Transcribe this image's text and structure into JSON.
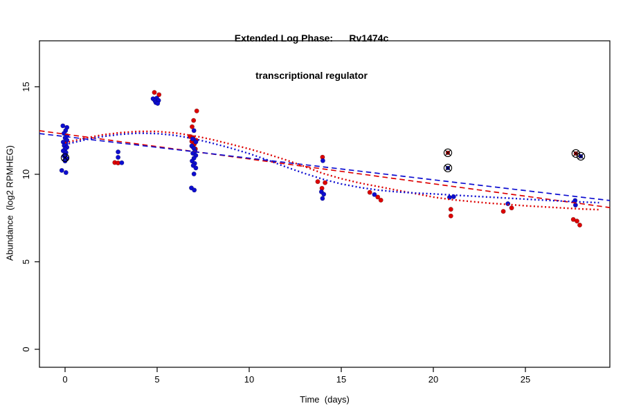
{
  "title": {
    "line1": "Extended Log Phase:      Rv1474c",
    "line2": "transcriptional regulator"
  },
  "colors": {
    "red": "#dd0000",
    "blue": "#0d0dd0",
    "axis": "#000000",
    "outlier_marker": "#000000"
  },
  "chart_data": {
    "type": "scatter",
    "title": "Extended Log Phase: Rv1474c transcriptional regulator",
    "xlabel": "Time  (days)",
    "ylabel": "Abundance  (log2 RPMHEG)",
    "xlim": [
      -1.39,
      29.59
    ],
    "ylim": [
      -1.03,
      17.63
    ],
    "x_ticks": [
      0,
      5,
      10,
      15,
      20,
      25
    ],
    "y_ticks": [
      0,
      5,
      10,
      15
    ],
    "grid": false,
    "legend": "none",
    "series": [
      {
        "name": "red-replicate-points",
        "kind": "points",
        "color": "red",
        "points": [
          [
            2.7,
            10.67
          ],
          [
            2.88,
            10.65
          ],
          [
            4.85,
            14.68
          ],
          [
            5.1,
            14.55
          ],
          [
            7.15,
            13.62
          ],
          [
            6.98,
            13.08
          ],
          [
            6.9,
            12.72
          ],
          [
            6.78,
            12.16
          ],
          [
            6.95,
            12.1
          ],
          [
            7.12,
            11.95
          ],
          [
            6.88,
            11.88
          ],
          [
            7.02,
            11.72
          ],
          [
            6.92,
            11.58
          ],
          [
            7.08,
            11.45
          ],
          [
            13.98,
            10.98
          ],
          [
            13.72,
            9.58
          ],
          [
            14.12,
            9.52
          ],
          [
            13.95,
            9.2
          ],
          [
            16.55,
            8.97
          ],
          [
            16.98,
            8.7
          ],
          [
            17.15,
            8.52
          ],
          [
            20.95,
            8.0
          ],
          [
            20.95,
            7.62
          ],
          [
            23.8,
            7.88
          ],
          [
            24.25,
            8.08
          ],
          [
            27.6,
            7.42
          ],
          [
            27.8,
            7.33
          ],
          [
            27.95,
            7.1
          ]
        ]
      },
      {
        "name": "blue-replicate-points",
        "kind": "points",
        "color": "blue",
        "points": [
          [
            -0.12,
            12.77
          ],
          [
            0.1,
            12.68
          ],
          [
            0.03,
            12.5
          ],
          [
            -0.06,
            12.34
          ],
          [
            0.1,
            12.2
          ],
          [
            0.0,
            12.08
          ],
          [
            0.1,
            11.95
          ],
          [
            -0.1,
            11.84
          ],
          [
            0.05,
            11.74
          ],
          [
            -0.05,
            11.64
          ],
          [
            0.1,
            11.54
          ],
          [
            0.0,
            11.44
          ],
          [
            -0.1,
            11.34
          ],
          [
            0.05,
            11.24
          ],
          [
            0.0,
            11.14
          ],
          [
            -0.05,
            11.04
          ],
          [
            0.1,
            10.9
          ],
          [
            0.0,
            10.76
          ],
          [
            -0.18,
            10.22
          ],
          [
            0.05,
            10.1
          ],
          [
            2.88,
            11.28
          ],
          [
            2.88,
            10.97
          ],
          [
            3.08,
            10.66
          ],
          [
            4.78,
            14.32
          ],
          [
            4.98,
            14.35
          ],
          [
            4.88,
            14.2
          ],
          [
            5.08,
            14.22
          ],
          [
            4.93,
            14.1
          ],
          [
            5.03,
            14.05
          ],
          [
            7.0,
            12.5
          ],
          [
            6.93,
            12.02
          ],
          [
            7.1,
            11.85
          ],
          [
            6.88,
            11.62
          ],
          [
            7.0,
            11.48
          ],
          [
            7.06,
            11.32
          ],
          [
            6.94,
            11.2
          ],
          [
            7.1,
            11.08
          ],
          [
            7.0,
            10.92
          ],
          [
            6.9,
            10.76
          ],
          [
            7.04,
            10.62
          ],
          [
            6.96,
            10.5
          ],
          [
            7.1,
            10.36
          ],
          [
            7.0,
            10.02
          ],
          [
            6.86,
            9.22
          ],
          [
            7.02,
            9.1
          ],
          [
            14.0,
            10.78
          ],
          [
            13.92,
            9.0
          ],
          [
            14.05,
            8.86
          ],
          [
            13.98,
            8.62
          ],
          [
            16.8,
            8.84
          ],
          [
            20.88,
            8.68
          ],
          [
            21.1,
            8.72
          ],
          [
            24.05,
            8.32
          ],
          [
            27.7,
            8.5
          ],
          [
            27.72,
            8.24
          ]
        ]
      },
      {
        "name": "outlier-flagged-points",
        "kind": "outliers",
        "marker": "circle-x",
        "points": [
          {
            "x": 0.0,
            "y": 10.95,
            "color": "blue"
          },
          {
            "x": 20.79,
            "y": 11.23,
            "color": "red"
          },
          {
            "x": 20.79,
            "y": 10.36,
            "color": "blue"
          },
          {
            "x": 27.74,
            "y": 11.19,
            "color": "red"
          },
          {
            "x": 28.01,
            "y": 11.03,
            "color": "blue"
          }
        ]
      },
      {
        "name": "red-linear-fit",
        "kind": "line",
        "style": "dashed",
        "color": "red",
        "points": [
          [
            -1.39,
            12.49
          ],
          [
            29.59,
            8.1
          ]
        ]
      },
      {
        "name": "blue-linear-fit",
        "kind": "line",
        "style": "dashed",
        "color": "blue",
        "points": [
          [
            -1.39,
            12.33
          ],
          [
            29.59,
            8.5
          ]
        ]
      },
      {
        "name": "red-smooth-fit",
        "kind": "line",
        "style": "dotted",
        "color": "red",
        "points": [
          [
            0,
            11.8
          ],
          [
            1,
            12.05
          ],
          [
            2,
            12.25
          ],
          [
            3,
            12.38
          ],
          [
            4,
            12.45
          ],
          [
            5,
            12.45
          ],
          [
            6,
            12.36
          ],
          [
            7,
            12.2
          ],
          [
            8,
            11.98
          ],
          [
            9,
            11.72
          ],
          [
            10,
            11.45
          ],
          [
            11,
            11.15
          ],
          [
            12,
            10.82
          ],
          [
            13,
            10.45
          ],
          [
            14,
            10.05
          ],
          [
            15,
            9.75
          ],
          [
            16,
            9.5
          ],
          [
            17,
            9.3
          ],
          [
            18,
            9.1
          ],
          [
            19,
            8.9
          ],
          [
            20,
            8.7
          ],
          [
            21,
            8.55
          ],
          [
            22,
            8.45
          ],
          [
            23,
            8.35
          ],
          [
            24,
            8.28
          ],
          [
            25,
            8.2
          ],
          [
            26,
            8.14
          ],
          [
            27,
            8.08
          ],
          [
            28,
            8.02
          ],
          [
            29,
            7.98
          ]
        ]
      },
      {
        "name": "blue-smooth-fit",
        "kind": "line",
        "style": "dotted",
        "color": "blue",
        "points": [
          [
            0,
            11.7
          ],
          [
            1,
            11.95
          ],
          [
            2,
            12.15
          ],
          [
            3,
            12.28
          ],
          [
            4,
            12.35
          ],
          [
            5,
            12.33
          ],
          [
            6,
            12.22
          ],
          [
            7,
            12.03
          ],
          [
            8,
            11.78
          ],
          [
            9,
            11.5
          ],
          [
            10,
            11.18
          ],
          [
            11,
            10.82
          ],
          [
            12,
            10.42
          ],
          [
            13,
            10.05
          ],
          [
            14,
            9.72
          ],
          [
            15,
            9.45
          ],
          [
            16,
            9.25
          ],
          [
            17,
            9.1
          ],
          [
            18,
            9.0
          ],
          [
            19,
            8.93
          ],
          [
            20,
            8.88
          ],
          [
            21,
            8.82
          ],
          [
            22,
            8.76
          ],
          [
            23,
            8.7
          ],
          [
            24,
            8.64
          ],
          [
            25,
            8.58
          ],
          [
            26,
            8.52
          ],
          [
            27,
            8.47
          ],
          [
            28,
            8.42
          ],
          [
            29,
            8.38
          ]
        ]
      }
    ]
  }
}
